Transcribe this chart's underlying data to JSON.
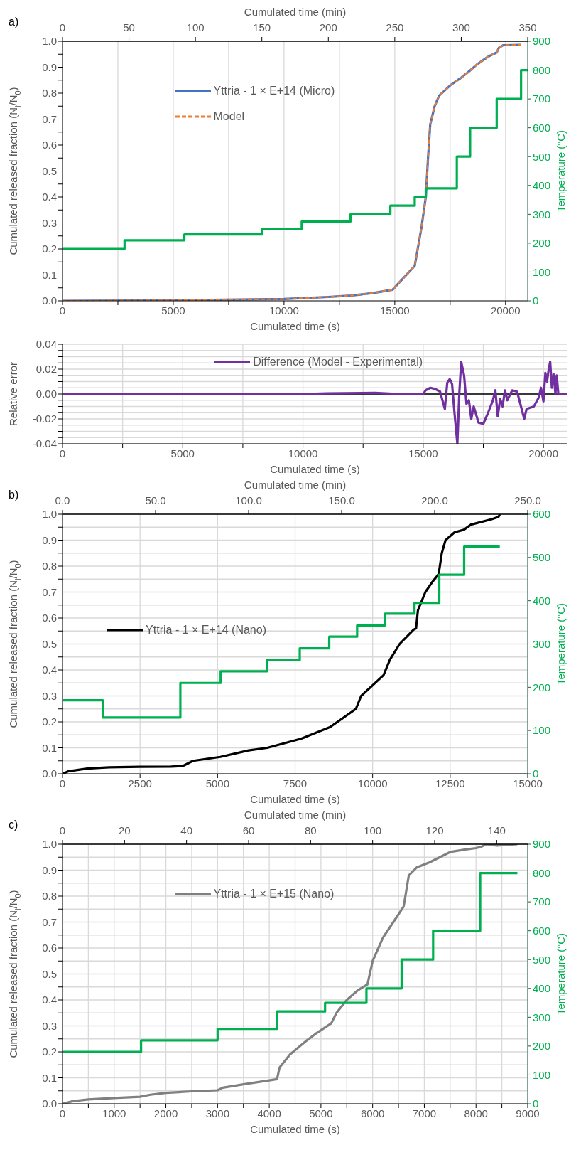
{
  "chart_data": [
    {
      "type": "line",
      "title": "a)",
      "xlabel": "Cumulated time (s)",
      "x2label": "Cumulated time (min)",
      "ylabel": "Cumulated released fraction (N$_{i}$/N$_{0}$)",
      "y2label": "Temperature (°C)",
      "xlim": [
        0,
        21000
      ],
      "xticks": [
        0,
        {
          "value": 2500,
          "label": null
        },
        5000,
        {
          "value": 7500,
          "label": null
        },
        10000,
        {
          "value": 12500,
          "label": null
        },
        15000,
        {
          "value": 17500,
          "label": null
        },
        20000
      ],
      "x2lim": [
        0,
        350
      ],
      "x2ticks": [
        0,
        50,
        100,
        150,
        200,
        250,
        300,
        350
      ],
      "ylim": [
        0,
        1
      ],
      "yticks": [
        {
          "value": 0,
          "label": "0.0"
        },
        {
          "value": 0.05,
          "label": null
        },
        {
          "value": 0.1,
          "label": "0.1"
        },
        {
          "value": 0.15,
          "label": null
        },
        {
          "value": 0.2,
          "label": "0.2"
        },
        {
          "value": 0.25,
          "label": null
        },
        {
          "value": 0.3,
          "label": "0.3"
        },
        {
          "value": 0.35,
          "label": null
        },
        {
          "value": 0.4,
          "label": "0.4"
        },
        {
          "value": 0.45,
          "label": null
        },
        {
          "value": 0.5,
          "label": "0.5"
        },
        {
          "value": 0.55,
          "label": null
        },
        {
          "value": 0.6,
          "label": "0.6"
        },
        {
          "value": 0.65,
          "label": null
        },
        {
          "value": 0.7,
          "label": "0.7"
        },
        {
          "value": 0.75,
          "label": null
        },
        {
          "value": 0.8,
          "label": "0.8"
        },
        {
          "value": 0.85,
          "label": null
        },
        {
          "value": 0.9,
          "label": "0.9"
        },
        {
          "value": 0.95,
          "label": null
        },
        {
          "value": 1,
          "label": "1.0"
        }
      ],
      "y2lim": [
        0,
        900
      ],
      "y2ticks": [
        0,
        100,
        200,
        300,
        400,
        500,
        600,
        700,
        800,
        900
      ],
      "grid": "x",
      "legend": "top left",
      "marker": "none",
      "series": [
        {
          "name": "Yttria - 1 × E+14 (Micro)",
          "color": "#4472c4",
          "type": "line",
          "x": [
            0,
            5000,
            10000,
            12000,
            13000,
            14000,
            14900,
            15900,
            16200,
            16400,
            16500,
            16600,
            16800,
            17000,
            17500,
            18000,
            18300,
            18700,
            19200,
            19600,
            19700,
            19900,
            20700
          ],
          "values": [
            0,
            0.002,
            0.007,
            0.015,
            0.02,
            0.03,
            0.043,
            0.135,
            0.28,
            0.4,
            0.55,
            0.68,
            0.75,
            0.79,
            0.83,
            0.86,
            0.88,
            0.91,
            0.94,
            0.957,
            0.975,
            0.985,
            0.986
          ]
        },
        {
          "name": "Model",
          "color": "#ed7d31",
          "type": "line",
          "line_style": "dashed",
          "x": [
            0,
            5000,
            10000,
            12000,
            13000,
            14000,
            14900,
            15900,
            16200,
            16400,
            16500,
            16600,
            16800,
            17000,
            17500,
            18000,
            18300,
            18700,
            19200,
            19600,
            19700,
            19900,
            20700
          ],
          "values": [
            0,
            0.002,
            0.007,
            0.015,
            0.02,
            0.03,
            0.043,
            0.135,
            0.28,
            0.4,
            0.55,
            0.68,
            0.75,
            0.79,
            0.83,
            0.86,
            0.88,
            0.91,
            0.94,
            0.957,
            0.975,
            0.985,
            0.986
          ]
        },
        {
          "color": "#00b050",
          "type": "step",
          "axis": "y2",
          "x": [
            0,
            2800,
            5500,
            9000,
            10800,
            13000,
            14800,
            15900,
            16400,
            17800,
            18400,
            19600,
            20700,
            21000
          ],
          "values": [
            180,
            210,
            230,
            250,
            275,
            300,
            330,
            360,
            390,
            500,
            600,
            700,
            800,
            800
          ]
        }
      ]
    },
    {
      "type": "line",
      "xlabel": "Cumulated time (s)",
      "ylabel": "Relative error",
      "xlim": [
        0,
        21000
      ],
      "xticks": [
        0,
        {
          "value": 2500,
          "label": null
        },
        5000,
        {
          "value": 7500,
          "label": null
        },
        10000,
        {
          "value": 12500,
          "label": null
        },
        15000,
        {
          "value": 17500,
          "label": null
        },
        20000
      ],
      "ylim": [
        -0.04,
        0.04
      ],
      "yticks": [
        {
          "value": -0.04,
          "label": "-0.04"
        },
        {
          "value": -0.035,
          "label": null
        },
        {
          "value": -0.03,
          "label": null
        },
        {
          "value": -0.025,
          "label": null
        },
        {
          "value": -0.02,
          "label": "-0.02"
        },
        {
          "value": -0.015,
          "label": null
        },
        {
          "value": -0.01,
          "label": null
        },
        {
          "value": -0.005,
          "label": null
        },
        {
          "value": 0,
          "label": "0.00"
        },
        {
          "value": 0.005,
          "label": null
        },
        {
          "value": 0.01,
          "label": null
        },
        {
          "value": 0.015,
          "label": null
        },
        {
          "value": 0.02,
          "label": "0.02"
        },
        {
          "value": 0.025,
          "label": null
        },
        {
          "value": 0.03,
          "label": null
        },
        {
          "value": 0.035,
          "label": null
        },
        {
          "value": 0.04,
          "label": "0.04"
        }
      ],
      "grid": true,
      "legend": "top",
      "marker": "none",
      "ref_lines": [
        {
          "axis": "y",
          "value": 0,
          "color": "#000000"
        }
      ],
      "series": [
        {
          "name": "Difference (Model - Experimental)",
          "color": "#7030a0",
          "type": "line",
          "x": [
            0,
            5000,
            10000,
            11000,
            13000,
            14000,
            15000,
            15100,
            15300,
            15500,
            15700,
            15800,
            15900,
            16000,
            16100,
            16200,
            16300,
            16420,
            16500,
            16580,
            16700,
            16800,
            16900,
            17000,
            17100,
            17300,
            17500,
            17700,
            17900,
            18000,
            18100,
            18200,
            18300,
            18400,
            18500,
            18700,
            18900,
            19000,
            19200,
            19300,
            19600,
            19800,
            19900,
            20000,
            20080,
            20150,
            20220,
            20280,
            20350,
            20420,
            20500,
            20550,
            20620,
            21000
          ],
          "values": [
            0,
            0,
            0,
            0.0005,
            0.001,
            0,
            0,
            0.003,
            0.005,
            0.004,
            0.002,
            -0.005,
            -0.012,
            0.009,
            0.012,
            0.008,
            -0.015,
            -0.04,
            0,
            0.026,
            0.015,
            -0.008,
            -0.005,
            -0.02,
            -0.01,
            -0.023,
            -0.024,
            -0.015,
            -0.005,
            0.003,
            -0.018,
            -0.004,
            -0.01,
            0.003,
            -0.005,
            0.003,
            0.002,
            -0.005,
            -0.02,
            -0.012,
            -0.01,
            -0.003,
            0.005,
            -0.006,
            0.017,
            0.01,
            0.02,
            0.026,
            0.005,
            0.016,
            0,
            0.015,
            0,
            0
          ]
        }
      ]
    },
    {
      "type": "line",
      "title": "b)",
      "xlabel": "Cumulated time (s)",
      "x2label": "Cumulated time (min)",
      "ylabel": "Cumulated released fraction (N$_{i}$/N$_{0}$)",
      "y2label": "Temperature (°C)",
      "xlim": [
        0,
        15000
      ],
      "xticks": [
        0,
        2500,
        5000,
        7500,
        10000,
        12500,
        15000
      ],
      "x2lim": [
        0,
        250
      ],
      "x2ticks": [
        {
          "value": 0,
          "label": "0.0"
        },
        {
          "value": 50,
          "label": "50.0"
        },
        {
          "value": 100,
          "label": "100.0"
        },
        {
          "value": 150,
          "label": "150.0"
        },
        {
          "value": 200,
          "label": "200.0"
        },
        {
          "value": 250,
          "label": "250.0"
        }
      ],
      "ylim": [
        0,
        1
      ],
      "yticks": [
        {
          "value": 0,
          "label": "0.0"
        },
        {
          "value": 0.05,
          "label": null
        },
        {
          "value": 0.1,
          "label": "0.1"
        },
        {
          "value": 0.15,
          "label": null
        },
        {
          "value": 0.2,
          "label": "0.2"
        },
        {
          "value": 0.25,
          "label": null
        },
        {
          "value": 0.3,
          "label": "0.3"
        },
        {
          "value": 0.35,
          "label": null
        },
        {
          "value": 0.4,
          "label": "0.4"
        },
        {
          "value": 0.45,
          "label": null
        },
        {
          "value": 0.5,
          "label": "0.5"
        },
        {
          "value": 0.55,
          "label": null
        },
        {
          "value": 0.6,
          "label": "0.6"
        },
        {
          "value": 0.65,
          "label": null
        },
        {
          "value": 0.7,
          "label": "0.7"
        },
        {
          "value": 0.75,
          "label": null
        },
        {
          "value": 0.8,
          "label": "0.8"
        },
        {
          "value": 0.85,
          "label": null
        },
        {
          "value": 0.9,
          "label": "0.9"
        },
        {
          "value": 0.95,
          "label": null
        },
        {
          "value": 1,
          "label": "1.0"
        }
      ],
      "y2lim": [
        0,
        600
      ],
      "y2ticks": [
        0,
        100,
        200,
        300,
        400,
        500,
        600
      ],
      "grid": true,
      "legend": "left",
      "marker": "none",
      "series": [
        {
          "name": "Yttria - 1 × E+14 (Nano)",
          "color": "#000000",
          "type": "line",
          "x": [
            0,
            200,
            800,
            1500,
            2500,
            3500,
            3880,
            4210,
            5090,
            6000,
            6600,
            7690,
            8630,
            9460,
            9630,
            10350,
            10560,
            10870,
            11320,
            11400,
            11460,
            11700,
            11930,
            12130,
            12230,
            12350,
            12640,
            12940,
            13170,
            13820,
            14060,
            14100
          ],
          "values": [
            0,
            0.01,
            0.02,
            0.025,
            0.027,
            0.028,
            0.03,
            0.05,
            0.065,
            0.09,
            0.1,
            0.135,
            0.18,
            0.25,
            0.3,
            0.38,
            0.44,
            0.5,
            0.555,
            0.56,
            0.63,
            0.7,
            0.74,
            0.77,
            0.85,
            0.9,
            0.93,
            0.94,
            0.96,
            0.98,
            0.99,
            1
          ]
        },
        {
          "color": "#00b050",
          "type": "step",
          "axis": "y2",
          "x": [
            0,
            1300,
            3800,
            5100,
            6600,
            7650,
            8600,
            9500,
            10400,
            11350,
            12150,
            12950,
            14100
          ],
          "values": [
            170,
            130,
            210,
            237,
            263,
            290,
            317,
            343,
            370,
            395,
            460,
            525,
            525
          ]
        }
      ]
    },
    {
      "type": "line",
      "title": "c)",
      "xlabel": "Cumulated time (s)",
      "x2label": "Cumulated time (min)",
      "ylabel": "Cumulated released fraction (N$_{i}$/N$_{0}$)",
      "y2label": "Temperature (°C)",
      "xlim": [
        0,
        9000
      ],
      "xticks": [
        0,
        {
          "value": 500,
          "label": null
        },
        1000,
        {
          "value": 1500,
          "label": null
        },
        2000,
        {
          "value": 2500,
          "label": null
        },
        3000,
        {
          "value": 3500,
          "label": null
        },
        4000,
        {
          "value": 4500,
          "label": null
        },
        5000,
        {
          "value": 5500,
          "label": null
        },
        6000,
        {
          "value": 6500,
          "label": null
        },
        7000,
        {
          "value": 7500,
          "label": null
        },
        8000,
        {
          "value": 8500,
          "label": null
        },
        9000
      ],
      "x2lim": [
        0,
        150
      ],
      "x2ticks": [
        0,
        20,
        40,
        60,
        80,
        100,
        120,
        140
      ],
      "ylim": [
        0,
        1
      ],
      "yticks": [
        {
          "value": 0,
          "label": "0.0"
        },
        {
          "value": 0.05,
          "label": null
        },
        {
          "value": 0.1,
          "label": "0.1"
        },
        {
          "value": 0.15,
          "label": null
        },
        {
          "value": 0.2,
          "label": "0.2"
        },
        {
          "value": 0.25,
          "label": null
        },
        {
          "value": 0.3,
          "label": "0.3"
        },
        {
          "value": 0.35,
          "label": null
        },
        {
          "value": 0.4,
          "label": "0.4"
        },
        {
          "value": 0.45,
          "label": null
        },
        {
          "value": 0.5,
          "label": "0.5"
        },
        {
          "value": 0.55,
          "label": null
        },
        {
          "value": 0.6,
          "label": "0.6"
        },
        {
          "value": 0.65,
          "label": null
        },
        {
          "value": 0.7,
          "label": "0.7"
        },
        {
          "value": 0.75,
          "label": null
        },
        {
          "value": 0.8,
          "label": "0.8"
        },
        {
          "value": 0.85,
          "label": null
        },
        {
          "value": 0.9,
          "label": "0.9"
        },
        {
          "value": 0.95,
          "label": null
        },
        {
          "value": 1,
          "label": "1.0"
        }
      ],
      "y2lim": [
        0,
        900
      ],
      "y2ticks": [
        0,
        100,
        200,
        300,
        400,
        500,
        600,
        700,
        800,
        900
      ],
      "grid": true,
      "legend": "top left",
      "marker": "none",
      "series": [
        {
          "name": "Yttria - 1 × E+15 (Nano)",
          "color": "#808080",
          "type": "line",
          "x": [
            0,
            200,
            500,
            1000,
            1500,
            1700,
            2000,
            2500,
            3000,
            3100,
            3500,
            4000,
            4150,
            4200,
            4400,
            4700,
            4900,
            5200,
            5300,
            5500,
            5700,
            5900,
            6000,
            6200,
            6400,
            6500,
            6600,
            6700,
            6850,
            7100,
            7300,
            7500,
            7800,
            8000,
            8100,
            8200,
            8400,
            8800
          ],
          "values": [
            0,
            0.01,
            0.017,
            0.022,
            0.027,
            0.035,
            0.042,
            0.048,
            0.052,
            0.062,
            0.075,
            0.09,
            0.095,
            0.14,
            0.19,
            0.24,
            0.27,
            0.31,
            0.35,
            0.4,
            0.435,
            0.46,
            0.55,
            0.64,
            0.7,
            0.73,
            0.76,
            0.88,
            0.91,
            0.93,
            0.95,
            0.97,
            0.98,
            0.985,
            0.99,
            1,
            0.995,
            1
          ]
        },
        {
          "color": "#00b050",
          "type": "step",
          "axis": "y2",
          "x": [
            0,
            1520,
            3000,
            4150,
            5080,
            5880,
            6560,
            7170,
            8080,
            8800
          ],
          "values": [
            180,
            220,
            260,
            320,
            350,
            400,
            500,
            600,
            800,
            800
          ]
        }
      ]
    }
  ]
}
